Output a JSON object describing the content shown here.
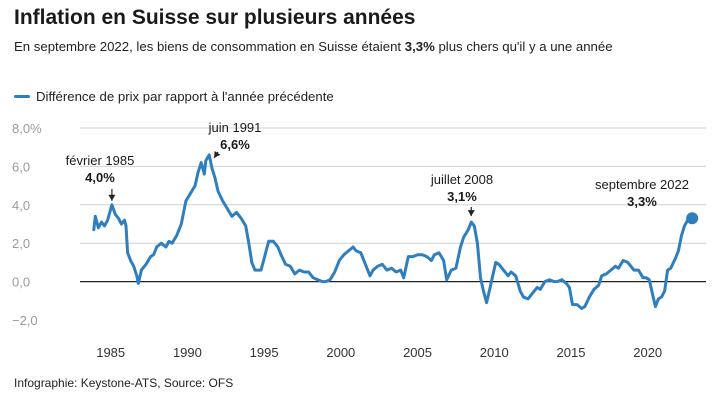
{
  "header": {
    "title": "Inflation en Suisse sur plusieurs années",
    "subtitle_pre": "En septembre 2022, les biens de consommation en Suisse étaient ",
    "subtitle_bold": "3,3%",
    "subtitle_post": " plus chers qu'il y a une année"
  },
  "legend": {
    "label": "Différence de prix par rapport à l'année précédente"
  },
  "source": "Infographie: Keystone-ATS, Source: OFS",
  "colors": {
    "series": "#2f7fbf",
    "grid": "#d0d0d0",
    "zero": "#222222",
    "tick": "#9a9a9a"
  },
  "chart_data": {
    "type": "line",
    "series": [
      {
        "name": "Différence de prix par rapport à l'année précédente"
      }
    ],
    "y_ticks": [
      "8,0%",
      "6,0",
      "4,0",
      "2,0",
      "0,0",
      "−2,0"
    ],
    "x_ticks": [
      "1985",
      "1990",
      "1995",
      "2000",
      "2005",
      "2010",
      "2015",
      "2020"
    ],
    "ylim": [
      -2,
      8
    ],
    "xlim": [
      1983.0,
      2023.8
    ],
    "grid": true,
    "annotations": [
      {
        "id": "feb1985",
        "label": "février 1985",
        "value": "4,0%",
        "x": 1985.08,
        "y": 4.0
      },
      {
        "id": "jun1991",
        "label": "juin 1991",
        "value": "6,6%",
        "x": 1991.42,
        "y": 6.6
      },
      {
        "id": "jul2008",
        "label": "juillet 2008",
        "value": "3,1%",
        "x": 2008.5,
        "y": 3.1
      },
      {
        "id": "sep2022",
        "label": "septembre 2022",
        "value": "3,3%",
        "x": 2022.67,
        "y": 3.3
      }
    ],
    "points": [
      [
        1983.9,
        2.7
      ],
      [
        1984.0,
        3.4
      ],
      [
        1984.2,
        2.8
      ],
      [
        1984.4,
        3.1
      ],
      [
        1984.6,
        2.9
      ],
      [
        1984.8,
        3.2
      ],
      [
        1985.08,
        4.0
      ],
      [
        1985.3,
        3.5
      ],
      [
        1985.5,
        3.3
      ],
      [
        1985.7,
        3.0
      ],
      [
        1985.9,
        3.2
      ],
      [
        1986.0,
        2.9
      ],
      [
        1986.1,
        1.5
      ],
      [
        1986.3,
        1.1
      ],
      [
        1986.5,
        0.8
      ],
      [
        1986.7,
        0.3
      ],
      [
        1986.8,
        -0.1
      ],
      [
        1987.0,
        0.6
      ],
      [
        1987.3,
        0.9
      ],
      [
        1987.6,
        1.3
      ],
      [
        1987.8,
        1.4
      ],
      [
        1988.0,
        1.8
      ],
      [
        1988.3,
        2.0
      ],
      [
        1988.6,
        1.8
      ],
      [
        1988.8,
        2.1
      ],
      [
        1989.0,
        2.0
      ],
      [
        1989.3,
        2.4
      ],
      [
        1989.6,
        3.0
      ],
      [
        1989.9,
        4.2
      ],
      [
        1990.2,
        4.6
      ],
      [
        1990.5,
        5.0
      ],
      [
        1990.7,
        5.7
      ],
      [
        1990.9,
        6.2
      ],
      [
        1991.1,
        5.6
      ],
      [
        1991.2,
        6.3
      ],
      [
        1991.42,
        6.6
      ],
      [
        1991.6,
        5.9
      ],
      [
        1991.8,
        5.4
      ],
      [
        1992.0,
        4.7
      ],
      [
        1992.3,
        4.2
      ],
      [
        1992.6,
        3.8
      ],
      [
        1992.9,
        3.4
      ],
      [
        1993.2,
        3.6
      ],
      [
        1993.5,
        3.3
      ],
      [
        1993.8,
        2.9
      ],
      [
        1994.0,
        2.0
      ],
      [
        1994.2,
        1.0
      ],
      [
        1994.4,
        0.6
      ],
      [
        1994.6,
        0.6
      ],
      [
        1994.8,
        0.6
      ],
      [
        1995.0,
        1.2
      ],
      [
        1995.3,
        2.1
      ],
      [
        1995.6,
        2.1
      ],
      [
        1995.9,
        1.8
      ],
      [
        1996.1,
        1.4
      ],
      [
        1996.4,
        0.9
      ],
      [
        1996.7,
        0.8
      ],
      [
        1997.0,
        0.4
      ],
      [
        1997.3,
        0.6
      ],
      [
        1997.6,
        0.5
      ],
      [
        1997.9,
        0.5
      ],
      [
        1998.2,
        0.2
      ],
      [
        1998.5,
        0.1
      ],
      [
        1998.8,
        0.0
      ],
      [
        1999.0,
        0.0
      ],
      [
        1999.3,
        0.1
      ],
      [
        1999.6,
        0.5
      ],
      [
        1999.9,
        1.1
      ],
      [
        2000.2,
        1.4
      ],
      [
        2000.5,
        1.6
      ],
      [
        2000.8,
        1.8
      ],
      [
        2001.0,
        1.6
      ],
      [
        2001.3,
        1.5
      ],
      [
        2001.6,
        0.9
      ],
      [
        2001.9,
        0.3
      ],
      [
        2002.1,
        0.6
      ],
      [
        2002.4,
        0.8
      ],
      [
        2002.7,
        0.9
      ],
      [
        2003.0,
        0.6
      ],
      [
        2003.3,
        0.7
      ],
      [
        2003.6,
        0.5
      ],
      [
        2003.9,
        0.6
      ],
      [
        2004.1,
        0.2
      ],
      [
        2004.4,
        1.3
      ],
      [
        2004.7,
        1.3
      ],
      [
        2005.0,
        1.4
      ],
      [
        2005.3,
        1.4
      ],
      [
        2005.6,
        1.3
      ],
      [
        2005.9,
        1.1
      ],
      [
        2006.1,
        1.4
      ],
      [
        2006.4,
        1.5
      ],
      [
        2006.7,
        1.1
      ],
      [
        2006.9,
        0.1
      ],
      [
        2007.2,
        0.6
      ],
      [
        2007.5,
        0.7
      ],
      [
        2007.8,
        1.8
      ],
      [
        2008.0,
        2.3
      ],
      [
        2008.3,
        2.7
      ],
      [
        2008.5,
        3.1
      ],
      [
        2008.7,
        2.9
      ],
      [
        2008.9,
        2.0
      ],
      [
        2009.1,
        0.2
      ],
      [
        2009.3,
        -0.5
      ],
      [
        2009.5,
        -1.1
      ],
      [
        2009.7,
        -0.4
      ],
      [
        2009.9,
        0.3
      ],
      [
        2010.1,
        1.0
      ],
      [
        2010.3,
        0.9
      ],
      [
        2010.6,
        0.6
      ],
      [
        2010.9,
        0.3
      ],
      [
        2011.1,
        0.5
      ],
      [
        2011.4,
        0.3
      ],
      [
        2011.7,
        -0.5
      ],
      [
        2011.9,
        -0.8
      ],
      [
        2012.2,
        -0.9
      ],
      [
        2012.5,
        -0.6
      ],
      [
        2012.8,
        -0.3
      ],
      [
        2013.0,
        -0.4
      ],
      [
        2013.3,
        0.0
      ],
      [
        2013.6,
        0.1
      ],
      [
        2013.9,
        0.0
      ],
      [
        2014.1,
        0.0
      ],
      [
        2014.4,
        0.1
      ],
      [
        2014.7,
        -0.1
      ],
      [
        2014.9,
        -0.3
      ],
      [
        2015.1,
        -1.2
      ],
      [
        2015.4,
        -1.2
      ],
      [
        2015.7,
        -1.4
      ],
      [
        2015.9,
        -1.3
      ],
      [
        2016.2,
        -0.8
      ],
      [
        2016.5,
        -0.4
      ],
      [
        2016.8,
        -0.2
      ],
      [
        2017.0,
        0.3
      ],
      [
        2017.3,
        0.4
      ],
      [
        2017.6,
        0.6
      ],
      [
        2017.9,
        0.8
      ],
      [
        2018.1,
        0.7
      ],
      [
        2018.4,
        1.1
      ],
      [
        2018.7,
        1.0
      ],
      [
        2018.9,
        0.8
      ],
      [
        2019.1,
        0.6
      ],
      [
        2019.4,
        0.6
      ],
      [
        2019.7,
        0.2
      ],
      [
        2019.9,
        0.2
      ],
      [
        2020.1,
        0.1
      ],
      [
        2020.3,
        -0.6
      ],
      [
        2020.5,
        -1.3
      ],
      [
        2020.7,
        -0.9
      ],
      [
        2020.9,
        -0.8
      ],
      [
        2021.1,
        -0.5
      ],
      [
        2021.3,
        0.6
      ],
      [
        2021.5,
        0.7
      ],
      [
        2021.8,
        1.2
      ],
      [
        2022.0,
        1.6
      ],
      [
        2022.2,
        2.4
      ],
      [
        2022.4,
        2.9
      ],
      [
        2022.67,
        3.3
      ],
      [
        2022.9,
        3.3
      ]
    ]
  }
}
